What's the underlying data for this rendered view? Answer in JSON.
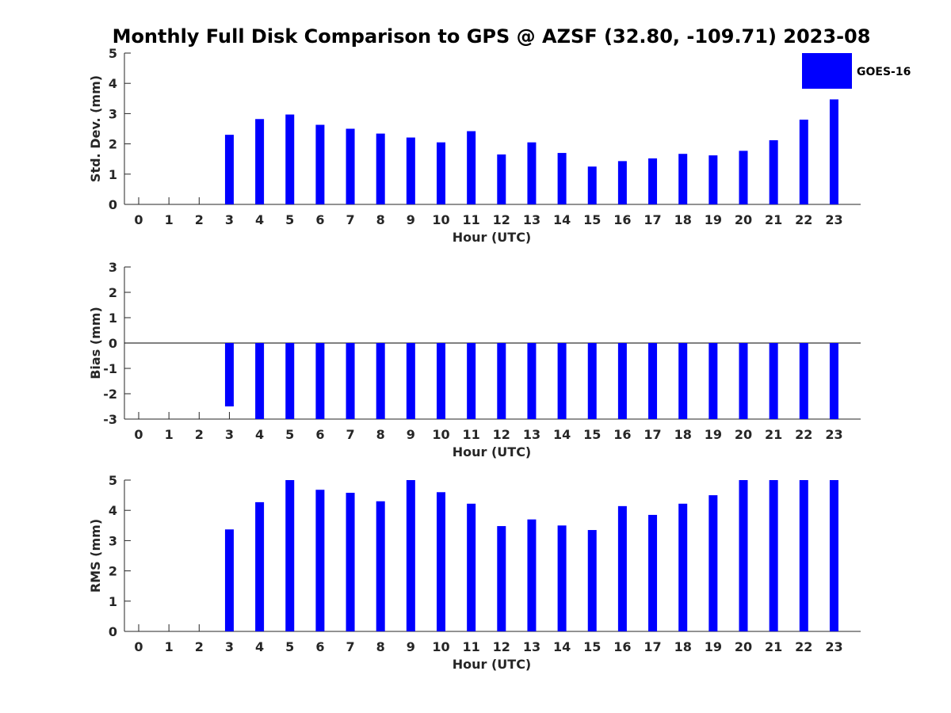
{
  "chart_data": {
    "type": "bar",
    "title": "Monthly Full Disk Comparison to GPS @ AZSF (32.80, -109.71) 2023-08",
    "categories": [
      "0",
      "1",
      "2",
      "3",
      "4",
      "5",
      "6",
      "7",
      "8",
      "9",
      "10",
      "11",
      "12",
      "13",
      "14",
      "15",
      "16",
      "17",
      "18",
      "19",
      "20",
      "21",
      "22",
      "23"
    ],
    "legend": {
      "entries": [
        "GOES-16"
      ],
      "placement": "top-right"
    },
    "bar_color": "#0000ff",
    "panels": [
      {
        "xlabel": "Hour (UTC)",
        "ylabel": "Std. Dev. (mm)",
        "ylim": [
          0,
          5
        ],
        "yticks": [
          "0",
          "1",
          "2",
          "3",
          "4",
          "5"
        ],
        "series": [
          {
            "name": "GOES-16",
            "values": [
              null,
              null,
              null,
              2.3,
              2.82,
              2.97,
              2.63,
              2.5,
              2.34,
              2.21,
              2.05,
              2.42,
              1.65,
              2.05,
              1.7,
              1.25,
              1.43,
              1.52,
              1.67,
              1.62,
              1.77,
              2.12,
              2.8,
              3.47
            ]
          }
        ]
      },
      {
        "xlabel": "Hour (UTC)",
        "ylabel": "Bias (mm)",
        "ylim": [
          -3,
          3
        ],
        "yticks": [
          "-3",
          "-2",
          "-1",
          "0",
          "1",
          "2",
          "3"
        ],
        "series": [
          {
            "name": "GOES-16",
            "values": [
              null,
              null,
              null,
              -2.5,
              -3,
              -3,
              -3,
              -3,
              -3,
              -3,
              -3,
              -3,
              -3,
              -3,
              -3,
              -3,
              -3,
              -3,
              -3,
              -3,
              -3,
              -3,
              -3,
              -3
            ]
          }
        ]
      },
      {
        "xlabel": "Hour (UTC)",
        "ylabel": "RMS (mm)",
        "ylim": [
          0,
          5
        ],
        "yticks": [
          "0",
          "1",
          "2",
          "3",
          "4",
          "5"
        ],
        "series": [
          {
            "name": "GOES-16",
            "values": [
              null,
              null,
              null,
              3.37,
              4.27,
              5,
              4.68,
              4.58,
              4.3,
              5,
              4.6,
              4.22,
              3.48,
              3.7,
              3.5,
              3.35,
              4.14,
              3.85,
              4.22,
              4.5,
              5,
              5,
              5,
              5
            ]
          }
        ]
      }
    ]
  }
}
